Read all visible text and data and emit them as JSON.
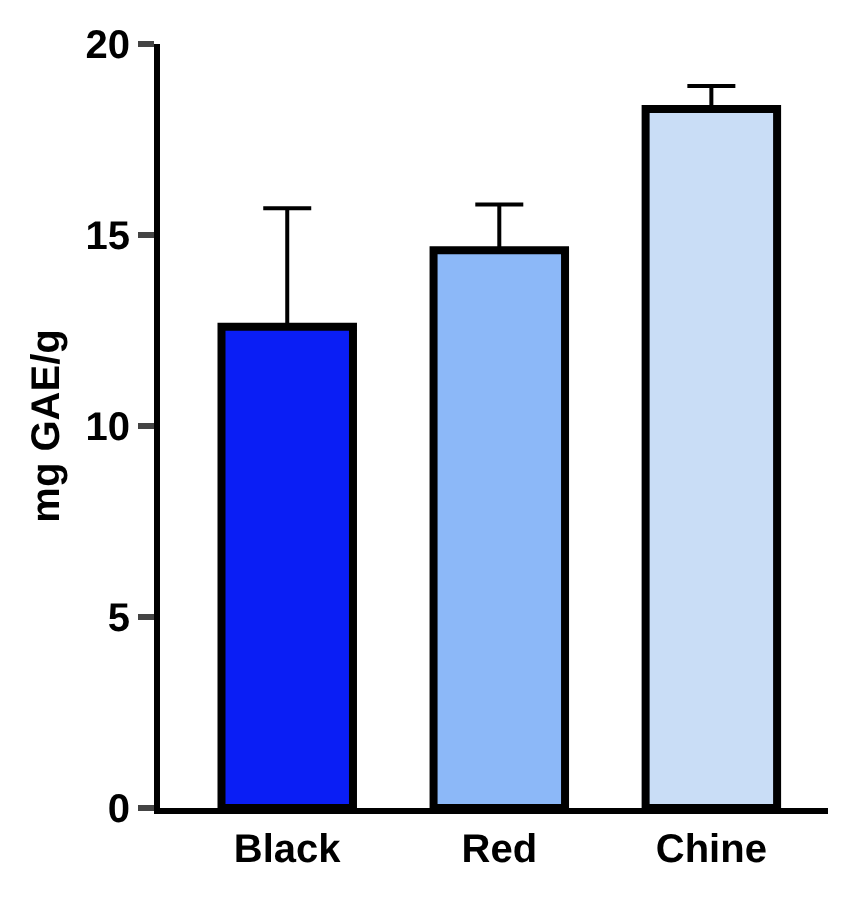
{
  "chart_data": {
    "type": "bar",
    "ylabel": "mg GAE/g",
    "categories": [
      "Black",
      "Red",
      "Chine"
    ],
    "values": [
      12.6,
      14.6,
      18.3
    ],
    "errors": [
      [
        12.6,
        15.7
      ],
      [
        14.6,
        15.8
      ],
      [
        18.3,
        18.9
      ]
    ],
    "colors": [
      "#0a1ef5",
      "#8cb8f8",
      "#c9ddf6"
    ],
    "ylim": [
      0,
      20
    ],
    "yticks": [
      0,
      5,
      10,
      15,
      20
    ],
    "grid": false,
    "legend": false
  }
}
